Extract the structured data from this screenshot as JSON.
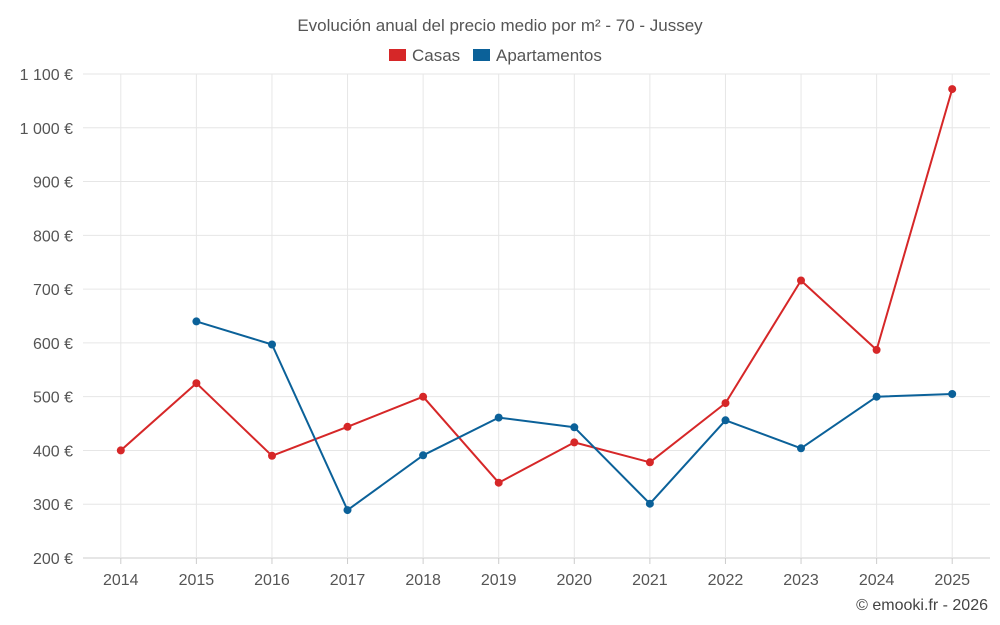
{
  "chart_data": {
    "type": "line",
    "title": "Evolución anual del precio medio por m² - 70 - Jussey",
    "categories": [
      "2014",
      "2015",
      "2016",
      "2017",
      "2018",
      "2019",
      "2020",
      "2021",
      "2022",
      "2023",
      "2024",
      "2025"
    ],
    "y_tick_labels": [
      "200 €",
      "300 €",
      "400 €",
      "500 €",
      "600 €",
      "700 €",
      "800 €",
      "900 €",
      "1 000 €",
      "1 100 €"
    ],
    "ylim": [
      200,
      1100
    ],
    "y_tick_step": 100,
    "grid": true,
    "legend_position": "top-center",
    "series": [
      {
        "name": "Casas",
        "color": "#d62728",
        "values": [
          400,
          525,
          390,
          444,
          500,
          340,
          415,
          378,
          488,
          716,
          587,
          1072
        ]
      },
      {
        "name": "Apartamentos",
        "color": "#0b6199",
        "values": [
          null,
          640,
          597,
          289,
          391,
          461,
          443,
          301,
          456,
          404,
          500,
          505
        ]
      }
    ],
    "credit": "© emooki.fr - 2026"
  }
}
